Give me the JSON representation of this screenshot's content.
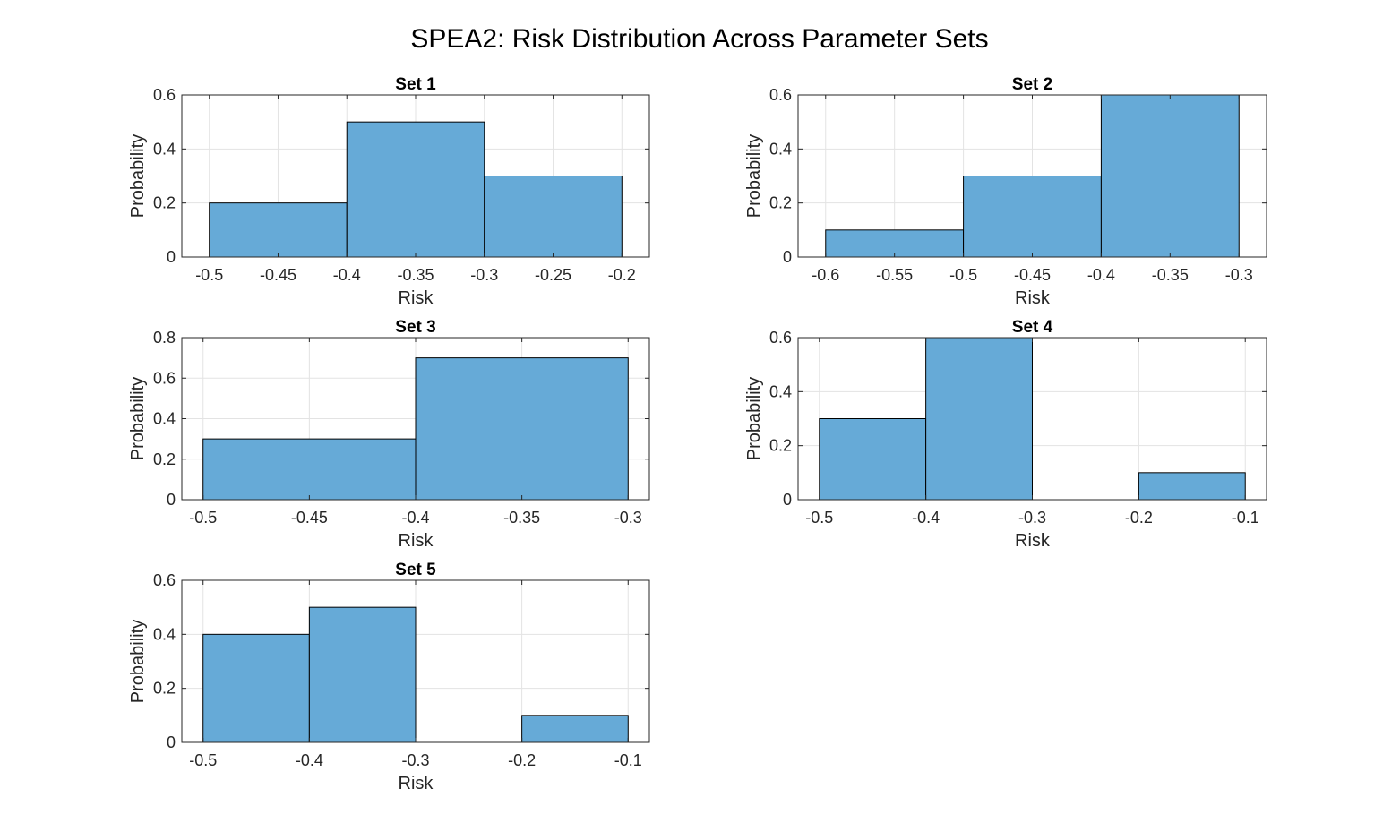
{
  "figure": {
    "title": "SPEA2: Risk Distribution Across Parameter Sets",
    "bar_color": "#66AAD7",
    "bar_edge_color": "#000000",
    "grid_color": "#E3E3E3"
  },
  "chart_data": [
    {
      "type": "bar",
      "title": "Set 1",
      "xlabel": "Risk",
      "ylabel": "Probability",
      "xlim": [
        -0.52,
        -0.18
      ],
      "ylim": [
        0,
        0.6
      ],
      "xticks": [
        -0.5,
        -0.45,
        -0.4,
        -0.35,
        -0.3,
        -0.25,
        -0.2
      ],
      "yticks": [
        0,
        0.2,
        0.4,
        0.6
      ],
      "grid": true,
      "bin_edges": [
        -0.5,
        -0.4,
        -0.3,
        -0.2
      ],
      "values": [
        0.2,
        0.5,
        0.3
      ]
    },
    {
      "type": "bar",
      "title": "Set 2",
      "xlabel": "Risk",
      "ylabel": "Probability",
      "xlim": [
        -0.62,
        -0.28
      ],
      "ylim": [
        0,
        0.6
      ],
      "xticks": [
        -0.6,
        -0.55,
        -0.5,
        -0.45,
        -0.4,
        -0.35,
        -0.3
      ],
      "yticks": [
        0,
        0.2,
        0.4,
        0.6
      ],
      "grid": true,
      "bin_edges": [
        -0.6,
        -0.5,
        -0.4,
        -0.3
      ],
      "values": [
        0.1,
        0.3,
        0.6
      ]
    },
    {
      "type": "bar",
      "title": "Set 3",
      "xlabel": "Risk",
      "ylabel": "Probability",
      "xlim": [
        -0.51,
        -0.29
      ],
      "ylim": [
        0,
        0.8
      ],
      "xticks": [
        -0.5,
        -0.45,
        -0.4,
        -0.35,
        -0.3
      ],
      "yticks": [
        0,
        0.2,
        0.4,
        0.6,
        0.8
      ],
      "grid": true,
      "bin_edges": [
        -0.5,
        -0.4,
        -0.3
      ],
      "values": [
        0.3,
        0.7
      ]
    },
    {
      "type": "bar",
      "title": "Set 4",
      "xlabel": "Risk",
      "ylabel": "Probability",
      "xlim": [
        -0.52,
        -0.08
      ],
      "ylim": [
        0,
        0.6
      ],
      "xticks": [
        -0.5,
        -0.4,
        -0.3,
        -0.2,
        -0.1
      ],
      "yticks": [
        0,
        0.2,
        0.4,
        0.6
      ],
      "grid": true,
      "bin_edges": [
        -0.5,
        -0.4,
        -0.3,
        -0.2,
        -0.1
      ],
      "values": [
        0.3,
        0.6,
        0,
        0.1
      ]
    },
    {
      "type": "bar",
      "title": "Set 5",
      "xlabel": "Risk",
      "ylabel": "Probability",
      "xlim": [
        -0.52,
        -0.08
      ],
      "ylim": [
        0,
        0.6
      ],
      "xticks": [
        -0.5,
        -0.4,
        -0.3,
        -0.2,
        -0.1
      ],
      "yticks": [
        0,
        0.2,
        0.4,
        0.6
      ],
      "grid": true,
      "bin_edges": [
        -0.5,
        -0.4,
        -0.3,
        -0.2,
        -0.1
      ],
      "values": [
        0.4,
        0.5,
        0,
        0.1
      ]
    }
  ]
}
